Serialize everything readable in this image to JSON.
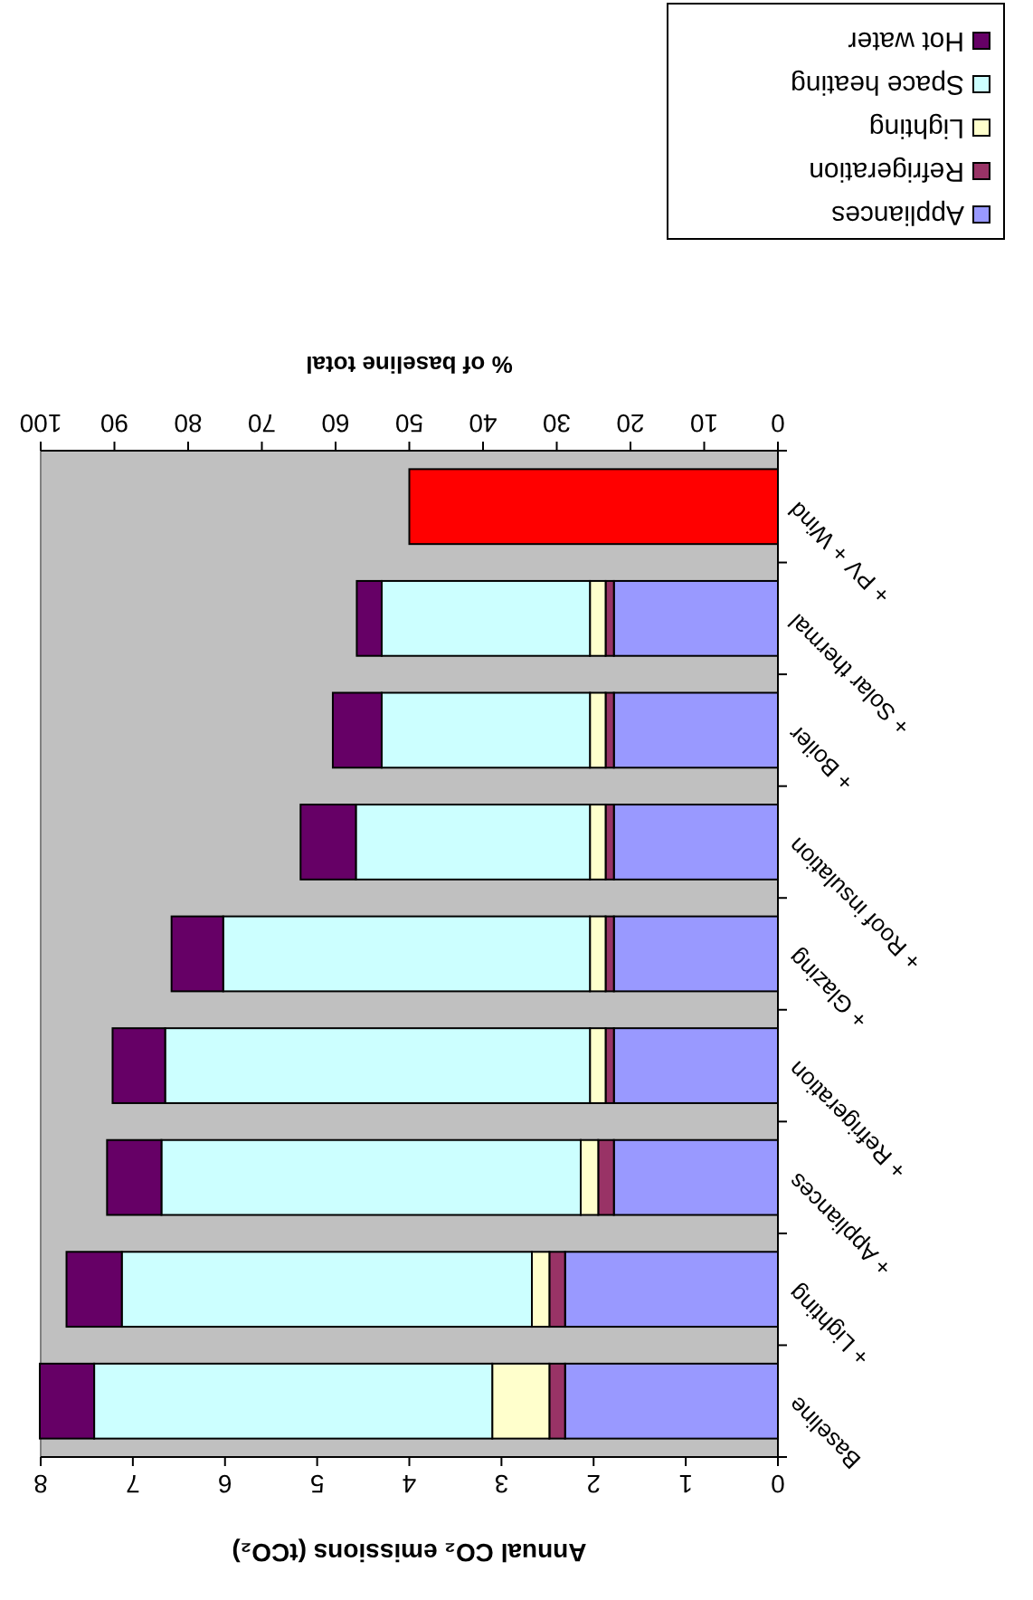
{
  "chart_data": {
    "type": "bar",
    "orientation": "horizontal",
    "stacked": true,
    "categories": [
      "+ PV + Wind",
      "+ Solar thermal",
      "+ Boiler",
      "+ Roof insulation",
      "+ Glazing",
      "+ Refrigeration",
      "+ Appliances",
      "+ Lighting",
      "Baseline"
    ],
    "series": [
      {
        "name": "Appliances",
        "color": "#9999ff",
        "values": [
          null,
          1.78,
          1.78,
          1.78,
          1.78,
          1.78,
          1.78,
          2.31,
          2.31
        ]
      },
      {
        "name": "Refrigeration",
        "color": "#993366",
        "values": [
          null,
          0.09,
          0.09,
          0.09,
          0.09,
          0.09,
          0.17,
          0.17,
          0.17
        ]
      },
      {
        "name": "Lighting",
        "color": "#ffffcc",
        "values": [
          null,
          0.17,
          0.17,
          0.17,
          0.17,
          0.17,
          0.19,
          0.19,
          0.62
        ]
      },
      {
        "name": "Space heating",
        "color": "#ccffff",
        "values": [
          null,
          2.26,
          2.26,
          2.54,
          3.98,
          4.61,
          4.55,
          4.45,
          4.32
        ]
      },
      {
        "name": "Hot water",
        "color": "#660066",
        "values": [
          null,
          0.27,
          0.53,
          0.6,
          0.56,
          0.57,
          0.59,
          0.6,
          0.59
        ]
      },
      {
        "color": "#ff0000",
        "values": [
          4.0,
          null,
          null,
          null,
          null,
          null,
          null,
          null,
          null
        ]
      }
    ],
    "xlabel": "Annual CO₂ emissions (tCO₂)",
    "xlim": [
      8,
      0
    ],
    "xticks": [
      8,
      7,
      6,
      5,
      4,
      3,
      2,
      1,
      0
    ],
    "x2label": "% of baseline total",
    "x2lim": [
      100,
      0
    ],
    "x2ticks": [
      100,
      90,
      80,
      70,
      60,
      50,
      40,
      30,
      20,
      10,
      0
    ],
    "legend": "top right",
    "grid": false
  }
}
